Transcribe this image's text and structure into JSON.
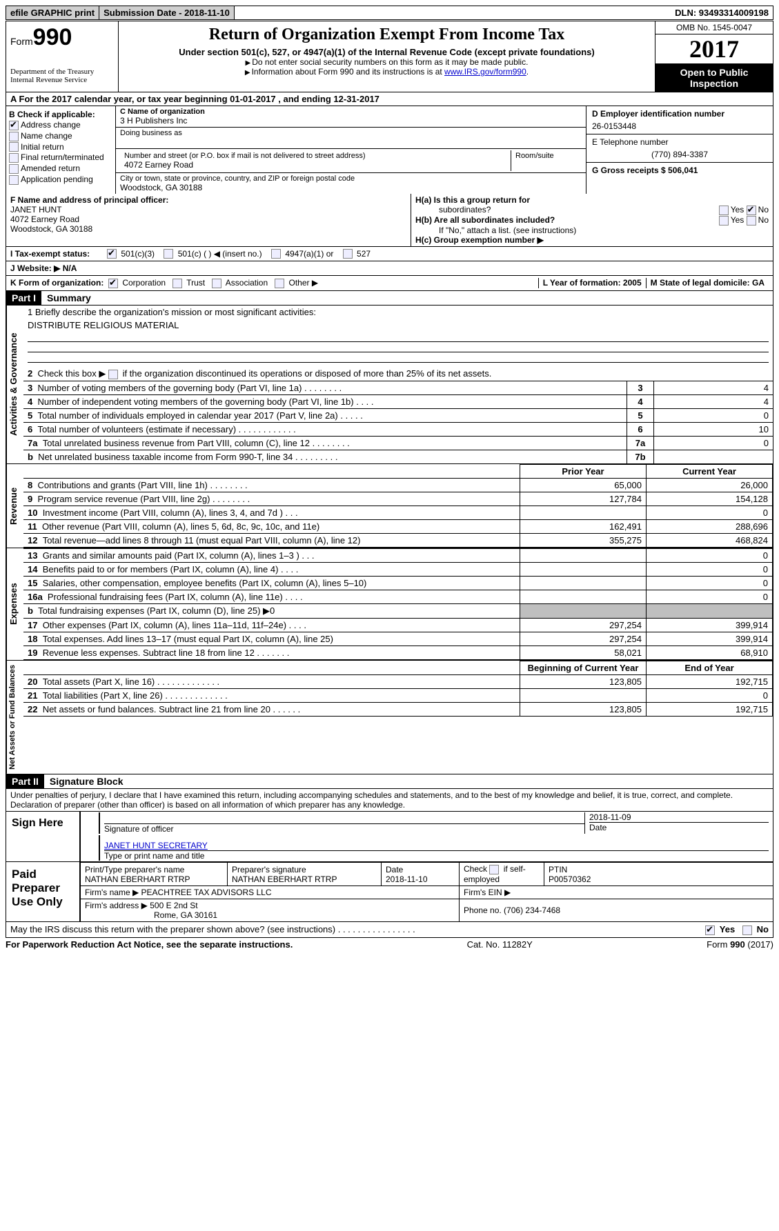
{
  "topbar": {
    "efile": "efile GRAPHIC print",
    "submission_label": "Submission Date - 2018-11-10",
    "dln_label": "DLN: 93493314009198"
  },
  "header": {
    "form_label": "Form",
    "form_number": "990",
    "dept": "Department of the Treasury",
    "irs": "Internal Revenue Service",
    "title": "Return of Organization Exempt From Income Tax",
    "sub": "Under section 501(c), 527, or 4947(a)(1) of the Internal Revenue Code (except private foundations)",
    "note1": "Do not enter social security numbers on this form as it may be made public.",
    "note2_a": "Information about Form 990 and its instructions is at ",
    "note2_link": "www.IRS.gov/form990",
    "note2_b": ".",
    "omb": "OMB No. 1545-0047",
    "year": "2017",
    "open": "Open to Public Inspection"
  },
  "section_a": "A  For the 2017 calendar year, or tax year beginning 01-01-2017   , and ending 12-31-2017",
  "col_b": {
    "title": "B Check if applicable:",
    "items": [
      "Address change",
      "Name change",
      "Initial return",
      "Final return/terminated",
      "Amended return",
      "Application pending"
    ],
    "checked_index": 0
  },
  "col_c": {
    "name_label": "C Name of organization",
    "name": "3 H Publishers Inc",
    "dba_label": "Doing business as",
    "street_label": "Number and street (or P.O. box if mail is not delivered to street address)",
    "room_label": "Room/suite",
    "street": "4072 Earney Road",
    "city_label": "City or town, state or province, country, and ZIP or foreign postal code",
    "city": "Woodstock, GA  30188"
  },
  "col_de": {
    "d_label": "D Employer identification number",
    "d_val": "26-0153448",
    "e_label": "E Telephone number",
    "e_val": "(770) 894-3387",
    "g_label": "G Gross receipts $ 506,041"
  },
  "row_f": {
    "label": "F  Name and address of principal officer:",
    "name": "JANET HUNT",
    "addr1": "4072 Earney Road",
    "addr2": "Woodstock, GA  30188"
  },
  "row_h": {
    "ha": "H(a)  Is this a group return for",
    "ha2": "subordinates?",
    "hb": "H(b)  Are all subordinates included?",
    "hnote": "If \"No,\" attach a list. (see instructions)",
    "hc": "H(c)  Group exemption number ▶",
    "yes": "Yes",
    "no": "No"
  },
  "row_i": {
    "label": "I  Tax-exempt status:",
    "opts": [
      "501(c)(3)",
      "501(c) (  ) ◀ (insert no.)",
      "4947(a)(1) or",
      "527"
    ]
  },
  "row_j": "J  Website: ▶  N/A",
  "row_k": {
    "k": "K Form of organization:",
    "opts": [
      "Corporation",
      "Trust",
      "Association",
      "Other ▶"
    ],
    "l": "L Year of formation: 2005",
    "m": "M State of legal domicile: GA"
  },
  "part1": {
    "label": "Part I",
    "title": "Summary",
    "line1": "1 Briefly describe the organization's mission or most significant activities:",
    "mission": "DISTRIBUTE RELIGIOUS MATERIAL",
    "line2": "2  Check this box ▶        if the organization discontinued its operations or disposed of more than 25% of its net assets.",
    "tabs": {
      "gov": "Activities & Governance",
      "rev": "Revenue",
      "exp": "Expenses",
      "net": "Net Assets or Fund Balances"
    },
    "gov_lines": [
      {
        "n": "3",
        "d": "Number of voting members of the governing body (Part VI, line 1a)   .    .    .    .    .    .    .    .",
        "nc": "3",
        "v": "4"
      },
      {
        "n": "4",
        "d": "Number of independent voting members of the governing body (Part VI, line 1b)    .    .    .    .",
        "nc": "4",
        "v": "4"
      },
      {
        "n": "5",
        "d": "Total number of individuals employed in calendar year 2017 (Part V, line 2a)   .    .    .    .    .",
        "nc": "5",
        "v": "0"
      },
      {
        "n": "6",
        "d": "Total number of volunteers (estimate if necessary)   .    .    .    .    .    .    .    .    .    .    .    .",
        "nc": "6",
        "v": "10"
      },
      {
        "n": "7a",
        "d": "Total unrelated business revenue from Part VIII, column (C), line 12   .    .    .    .    .    .    .    .",
        "nc": "7a",
        "v": "0"
      },
      {
        "n": "b",
        "d": "Net unrelated business taxable income from Form 990-T, line 34   .    .    .    .    .    .    .    .    .",
        "nc": "7b",
        "v": ""
      }
    ],
    "headers": {
      "py": "Prior Year",
      "cy": "Current Year",
      "bcy": "Beginning of Current Year",
      "eoy": "End of Year"
    },
    "rev_lines": [
      {
        "n": "8",
        "d": "Contributions and grants (Part VIII, line 1h)    .    .    .    .    .    .    .    .",
        "py": "65,000",
        "cy": "26,000"
      },
      {
        "n": "9",
        "d": "Program service revenue (Part VIII, line 2g)    .    .    .    .    .    .    .    .",
        "py": "127,784",
        "cy": "154,128"
      },
      {
        "n": "10",
        "d": "Investment income (Part VIII, column (A), lines 3, 4, and 7d )    .    .    .",
        "py": "",
        "cy": "0"
      },
      {
        "n": "11",
        "d": "Other revenue (Part VIII, column (A), lines 5, 6d, 8c, 9c, 10c, and 11e)",
        "py": "162,491",
        "cy": "288,696"
      },
      {
        "n": "12",
        "d": "Total revenue—add lines 8 through 11 (must equal Part VIII, column (A), line 12)",
        "py": "355,275",
        "cy": "468,824"
      }
    ],
    "exp_lines": [
      {
        "n": "13",
        "d": "Grants and similar amounts paid (Part IX, column (A), lines 1–3 )   .    .    .",
        "py": "",
        "cy": "0"
      },
      {
        "n": "14",
        "d": "Benefits paid to or for members (Part IX, column (A), line 4)   .    .    .    .",
        "py": "",
        "cy": "0"
      },
      {
        "n": "15",
        "d": "Salaries, other compensation, employee benefits (Part IX, column (A), lines 5–10)",
        "py": "",
        "cy": "0"
      },
      {
        "n": "16a",
        "d": "Professional fundraising fees (Part IX, column (A), line 11e)    .    .    .    .",
        "py": "",
        "cy": "0"
      },
      {
        "n": "b",
        "d": "Total fundraising expenses (Part IX, column (D), line 25) ▶0",
        "py": "shade",
        "cy": "shade"
      },
      {
        "n": "17",
        "d": "Other expenses (Part IX, column (A), lines 11a–11d, 11f–24e)    .    .    .    .",
        "py": "297,254",
        "cy": "399,914"
      },
      {
        "n": "18",
        "d": "Total expenses. Add lines 13–17 (must equal Part IX, column (A), line 25)",
        "py": "297,254",
        "cy": "399,914"
      },
      {
        "n": "19",
        "d": "Revenue less expenses. Subtract line 18 from line 12 .    .    .    .    .    .    .",
        "py": "58,021",
        "cy": "68,910"
      }
    ],
    "net_lines": [
      {
        "n": "20",
        "d": "Total assets (Part X, line 16)  .    .    .    .    .    .    .    .    .    .    .    .    .",
        "py": "123,805",
        "cy": "192,715"
      },
      {
        "n": "21",
        "d": "Total liabilities (Part X, line 26)  .    .    .    .    .    .    .    .    .    .    .    .    .",
        "py": "",
        "cy": "0"
      },
      {
        "n": "22",
        "d": "Net assets or fund balances. Subtract line 21 from line 20 .    .    .    .    .    .",
        "py": "123,805",
        "cy": "192,715"
      }
    ]
  },
  "part2": {
    "label": "Part II",
    "title": "Signature Block",
    "perjury": "Under penalties of perjury, I declare that I have examined this return, including accompanying schedules and statements, and to the best of my knowledge and belief, it is true, correct, and complete. Declaration of preparer (other than officer) is based on all information of which preparer has any knowledge.",
    "sign_here": "Sign Here",
    "sig_officer": "Signature of officer",
    "sig_date": "2018-11-09",
    "date_label": "Date",
    "officer_name": "JANET HUNT SECRETARY",
    "type_label": "Type or print name and title",
    "paid_label": "Paid Preparer Use Only",
    "prep_name_label": "Print/Type preparer's name",
    "prep_name": "NATHAN EBERHART RTRP",
    "prep_sig_label": "Preparer's signature",
    "prep_sig": "NATHAN EBERHART RTRP",
    "prep_date_label": "Date",
    "prep_date": "2018-11-10",
    "check_self": "Check         if self-employed",
    "ptin_label": "PTIN",
    "ptin": "P00570362",
    "firm_name_label": "Firm's name      ▶",
    "firm_name": "PEACHTREE TAX ADVISORS LLC",
    "firm_ein_label": "Firm's EIN ▶",
    "firm_addr_label": "Firm's address ▶",
    "firm_addr1": "500 E 2nd St",
    "firm_addr2": "Rome, GA  30161",
    "phone_label": "Phone no. (706) 234-7468",
    "discuss": "May the IRS discuss this return with the preparer shown above? (see instructions)   .    .    .    .    .    .    .    .    .    .    .    .    .    .    .    .",
    "yes": "Yes",
    "no": "No"
  },
  "footer": {
    "pra": "For Paperwork Reduction Act Notice, see the separate instructions.",
    "cat": "Cat. No. 11282Y",
    "form": "Form 990 (2017)"
  }
}
